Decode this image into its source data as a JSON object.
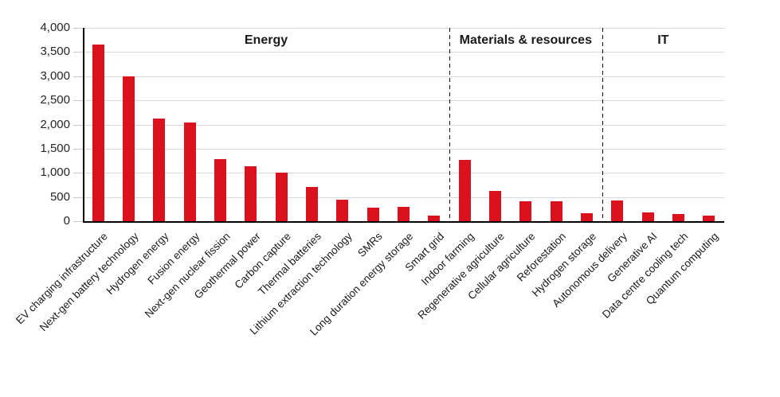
{
  "chart_data": {
    "type": "bar",
    "title": "",
    "categories": [
      "EV charging infrastructure",
      "Next-gen battery technology",
      "Hydrogen energy",
      "Fusion energy",
      "Next-gen nuclear fission",
      "Geothermal power",
      "Carbon capture",
      "Thermal batteries",
      "Lithium extraction technology",
      "SMRs",
      "Long duration energy storage",
      "Smart grid",
      "Indoor farming",
      "Regenerative agriculture",
      "Cellular agriculture",
      "Reforestation",
      "Hydrogen storage",
      "Autonomous delivery",
      "Generative AI",
      "Data centre cooling tech",
      "Quantum computing"
    ],
    "values": [
      3650,
      3000,
      2130,
      2040,
      1280,
      1130,
      1000,
      700,
      450,
      280,
      300,
      110,
      1260,
      620,
      410,
      410,
      170,
      420,
      180,
      150,
      120
    ],
    "sections": [
      {
        "label": "Energy",
        "count": 12
      },
      {
        "label": "Materials & resources",
        "count": 5
      },
      {
        "label": "IT",
        "count": 4
      }
    ],
    "xlabel": "",
    "ylabel": "",
    "ylim": [
      0,
      4000
    ],
    "y_tick_step": 500,
    "y_tick_labels": [
      "0",
      "500",
      "1,000",
      "1,500",
      "2,000",
      "2,500",
      "3,000",
      "3,500",
      "4,000"
    ],
    "grid": true,
    "legend": "none",
    "bar_color": "#da121e",
    "gridline_color": "#d9d9d9",
    "axis_color": "#000000",
    "separator_style": "dashed"
  }
}
